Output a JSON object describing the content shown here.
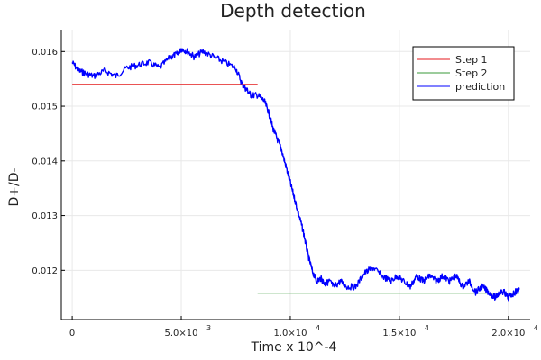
{
  "chart_data": {
    "type": "line",
    "title": "Depth detection",
    "xlabel": "Time x 10^-4",
    "ylabel": "D+/D-",
    "xlim": [
      -500,
      21000
    ],
    "ylim": [
      0.0111,
      0.0164
    ],
    "grid": true,
    "legend_position": "top-right",
    "x_ticks": [
      {
        "value": 0,
        "mantissa": "0",
        "exponent": ""
      },
      {
        "value": 5000,
        "mantissa": "5.0×10",
        "exponent": "3"
      },
      {
        "value": 10000,
        "mantissa": "1.0×10",
        "exponent": "4"
      },
      {
        "value": 15000,
        "mantissa": "1.5×10",
        "exponent": "4"
      },
      {
        "value": 20000,
        "mantissa": "2.0×10",
        "exponent": "4"
      }
    ],
    "y_ticks": [
      {
        "value": 0.012,
        "label": "0.012"
      },
      {
        "value": 0.013,
        "label": "0.013"
      },
      {
        "value": 0.014,
        "label": "0.014"
      },
      {
        "value": 0.015,
        "label": "0.015"
      },
      {
        "value": 0.016,
        "label": "0.016"
      }
    ],
    "series": [
      {
        "name": "Step 1",
        "color": "#e41a1c",
        "x": [
          0,
          8500
        ],
        "y": [
          0.0154,
          0.0154
        ]
      },
      {
        "name": "Step 2",
        "color": "#3a9a3a",
        "x": [
          8500,
          20500
        ],
        "y": [
          0.01158,
          0.01158
        ]
      },
      {
        "name": "prediction",
        "color": "#0000ff",
        "x": [
          0,
          300,
          600,
          1000,
          1500,
          2000,
          2500,
          3000,
          3500,
          4000,
          4500,
          4800,
          5000,
          5300,
          5600,
          6000,
          6500,
          7000,
          7500,
          7800,
          8000,
          8200,
          8500,
          8800,
          9000,
          9200,
          9400,
          9600,
          9800,
          10000,
          10200,
          10400,
          10600,
          10800,
          11000,
          11200,
          11400,
          11600,
          11800,
          12000,
          12300,
          12600,
          13000,
          13400,
          13800,
          14200,
          14600,
          14900,
          15200,
          15500,
          15800,
          16100,
          16400,
          16700,
          17000,
          17300,
          17600,
          17900,
          18200,
          18500,
          18800,
          19100,
          19400,
          19600,
          19800,
          20000,
          20300,
          20500
        ],
        "y": [
          0.0158,
          0.01565,
          0.0156,
          0.01555,
          0.01565,
          0.01555,
          0.0157,
          0.01575,
          0.0158,
          0.0157,
          0.0159,
          0.01595,
          0.01605,
          0.016,
          0.0159,
          0.016,
          0.0159,
          0.0158,
          0.0157,
          0.0154,
          0.0153,
          0.0152,
          0.0152,
          0.0151,
          0.0149,
          0.0146,
          0.0144,
          0.0142,
          0.0139,
          0.0136,
          0.0133,
          0.013,
          0.0127,
          0.0123,
          0.012,
          0.0118,
          0.01185,
          0.01175,
          0.0118,
          0.0117,
          0.0118,
          0.0117,
          0.0117,
          0.01195,
          0.01205,
          0.0119,
          0.0118,
          0.0119,
          0.0118,
          0.0117,
          0.0119,
          0.0118,
          0.0119,
          0.0118,
          0.0119,
          0.0118,
          0.0119,
          0.0117,
          0.0118,
          0.0116,
          0.0117,
          0.0116,
          0.0115,
          0.0116,
          0.0116,
          0.0115,
          0.0116,
          0.01165
        ]
      }
    ]
  }
}
